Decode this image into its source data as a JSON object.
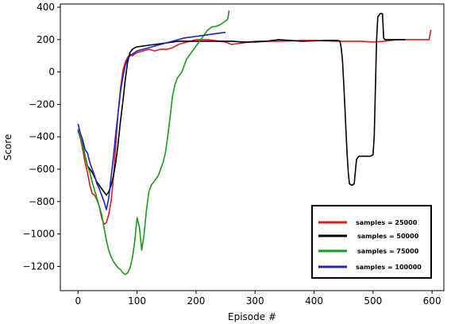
{
  "chart_data": {
    "type": "line",
    "xlabel": "Episode #",
    "ylabel": "Score",
    "xlim": [
      -30,
      620
    ],
    "ylim": [
      -1350,
      420
    ],
    "x_ticks": [
      0,
      100,
      200,
      300,
      400,
      500,
      600
    ],
    "y_ticks": [
      400,
      200,
      0,
      -200,
      -400,
      -600,
      -800,
      -1000,
      -1200
    ],
    "x_tick_labels": [
      "0",
      "100",
      "200",
      "300",
      "400",
      "500",
      "600"
    ],
    "y_tick_labels": [
      "400",
      "200",
      "0",
      "−200",
      "−400",
      "−600",
      "−800",
      "−1000",
      "−1200"
    ],
    "grid": false,
    "legend_position": "bottom-right",
    "series": [
      {
        "name": "samples = 25000",
        "color": "#e41a1c",
        "x": [
          0,
          4,
          8,
          12,
          16,
          20,
          24,
          28,
          32,
          36,
          40,
          44,
          48,
          52,
          56,
          60,
          64,
          68,
          72,
          76,
          80,
          84,
          88,
          92,
          96,
          100,
          110,
          120,
          130,
          140,
          150,
          160,
          170,
          180,
          190,
          200,
          210,
          220,
          230,
          240,
          250,
          260,
          270,
          280,
          290,
          300,
          320,
          340,
          360,
          380,
          400,
          420,
          440,
          460,
          480,
          500,
          520,
          540,
          560,
          580,
          595,
          598
        ],
        "y": [
          -360,
          -410,
          -480,
          -560,
          -620,
          -700,
          -750,
          -760,
          -790,
          -830,
          -900,
          -940,
          -930,
          -880,
          -800,
          -650,
          -450,
          -250,
          -100,
          10,
          60,
          90,
          110,
          100,
          110,
          120,
          130,
          140,
          130,
          140,
          140,
          150,
          170,
          180,
          190,
          200,
          200,
          200,
          195,
          190,
          185,
          170,
          175,
          180,
          185,
          190,
          190,
          190,
          192,
          195,
          195,
          192,
          190,
          190,
          190,
          185,
          190,
          200,
          200,
          200,
          200,
          260
        ]
      },
      {
        "name": "samples = 50000",
        "color": "#000000",
        "x": [
          0,
          4,
          8,
          12,
          16,
          20,
          24,
          28,
          32,
          36,
          40,
          44,
          48,
          52,
          56,
          60,
          64,
          68,
          72,
          76,
          80,
          84,
          88,
          92,
          96,
          100,
          110,
          120,
          130,
          140,
          150,
          160,
          170,
          180,
          200,
          220,
          240,
          260,
          280,
          300,
          320,
          340,
          360,
          380,
          400,
          420,
          440,
          444,
          446,
          448,
          450,
          452,
          454,
          456,
          458,
          460,
          464,
          468,
          472,
          476,
          480,
          484,
          488,
          492,
          496,
          500,
          502,
          504,
          506,
          508,
          512,
          516,
          518,
          520,
          530,
          540,
          555
        ],
        "y": [
          -360,
          -400,
          -450,
          -520,
          -580,
          -600,
          -620,
          -650,
          -680,
          -700,
          -720,
          -740,
          -760,
          -740,
          -700,
          -640,
          -560,
          -440,
          -300,
          -180,
          -50,
          60,
          120,
          140,
          150,
          155,
          160,
          165,
          170,
          175,
          180,
          185,
          190,
          190,
          190,
          190,
          190,
          190,
          185,
          185,
          190,
          200,
          195,
          190,
          192,
          195,
          195,
          190,
          150,
          80,
          -50,
          -200,
          -350,
          -500,
          -620,
          -690,
          -700,
          -690,
          -540,
          -520,
          -520,
          -520,
          -520,
          -520,
          -520,
          -510,
          -400,
          -100,
          200,
          340,
          360,
          360,
          210,
          200,
          200,
          200,
          200
        ]
      },
      {
        "name": "samples = 75000",
        "color": "#1a9a1a",
        "x": [
          0,
          4,
          8,
          12,
          16,
          20,
          24,
          28,
          32,
          36,
          40,
          44,
          48,
          52,
          56,
          60,
          64,
          68,
          72,
          76,
          80,
          84,
          88,
          92,
          96,
          100,
          104,
          108,
          112,
          116,
          120,
          124,
          128,
          132,
          136,
          140,
          144,
          148,
          152,
          156,
          160,
          164,
          168,
          172,
          176,
          180,
          184,
          188,
          192,
          196,
          200,
          204,
          208,
          212,
          216,
          220,
          224,
          228,
          232,
          236,
          240,
          244,
          248,
          252,
          254,
          256
        ],
        "y": [
          -350,
          -400,
          -460,
          -520,
          -580,
          -620,
          -680,
          -730,
          -780,
          -830,
          -880,
          -960,
          -1040,
          -1100,
          -1140,
          -1170,
          -1190,
          -1210,
          -1220,
          -1240,
          -1250,
          -1240,
          -1210,
          -1150,
          -1050,
          -900,
          -960,
          -1100,
          -1000,
          -850,
          -740,
          -700,
          -680,
          -660,
          -640,
          -600,
          -560,
          -500,
          -400,
          -280,
          -150,
          -80,
          -40,
          -20,
          0,
          40,
          80,
          100,
          120,
          140,
          160,
          180,
          200,
          220,
          240,
          260,
          270,
          280,
          280,
          285,
          290,
          300,
          310,
          320,
          330,
          380
        ]
      },
      {
        "name": "samples = 100000",
        "color": "#2020d0",
        "x": [
          0,
          4,
          8,
          12,
          16,
          20,
          24,
          28,
          32,
          36,
          40,
          44,
          48,
          52,
          56,
          60,
          64,
          68,
          72,
          76,
          80,
          84,
          88,
          92,
          96,
          100,
          110,
          120,
          130,
          140,
          150,
          160,
          170,
          180,
          190,
          200,
          210,
          220,
          230,
          240,
          250
        ],
        "y": [
          -320,
          -380,
          -420,
          -480,
          -500,
          -560,
          -600,
          -640,
          -690,
          -720,
          -760,
          -800,
          -850,
          -780,
          -650,
          -520,
          -380,
          -250,
          -120,
          -30,
          40,
          80,
          100,
          110,
          120,
          130,
          140,
          150,
          160,
          170,
          180,
          190,
          200,
          210,
          215,
          220,
          225,
          230,
          235,
          240,
          245
        ]
      }
    ]
  }
}
